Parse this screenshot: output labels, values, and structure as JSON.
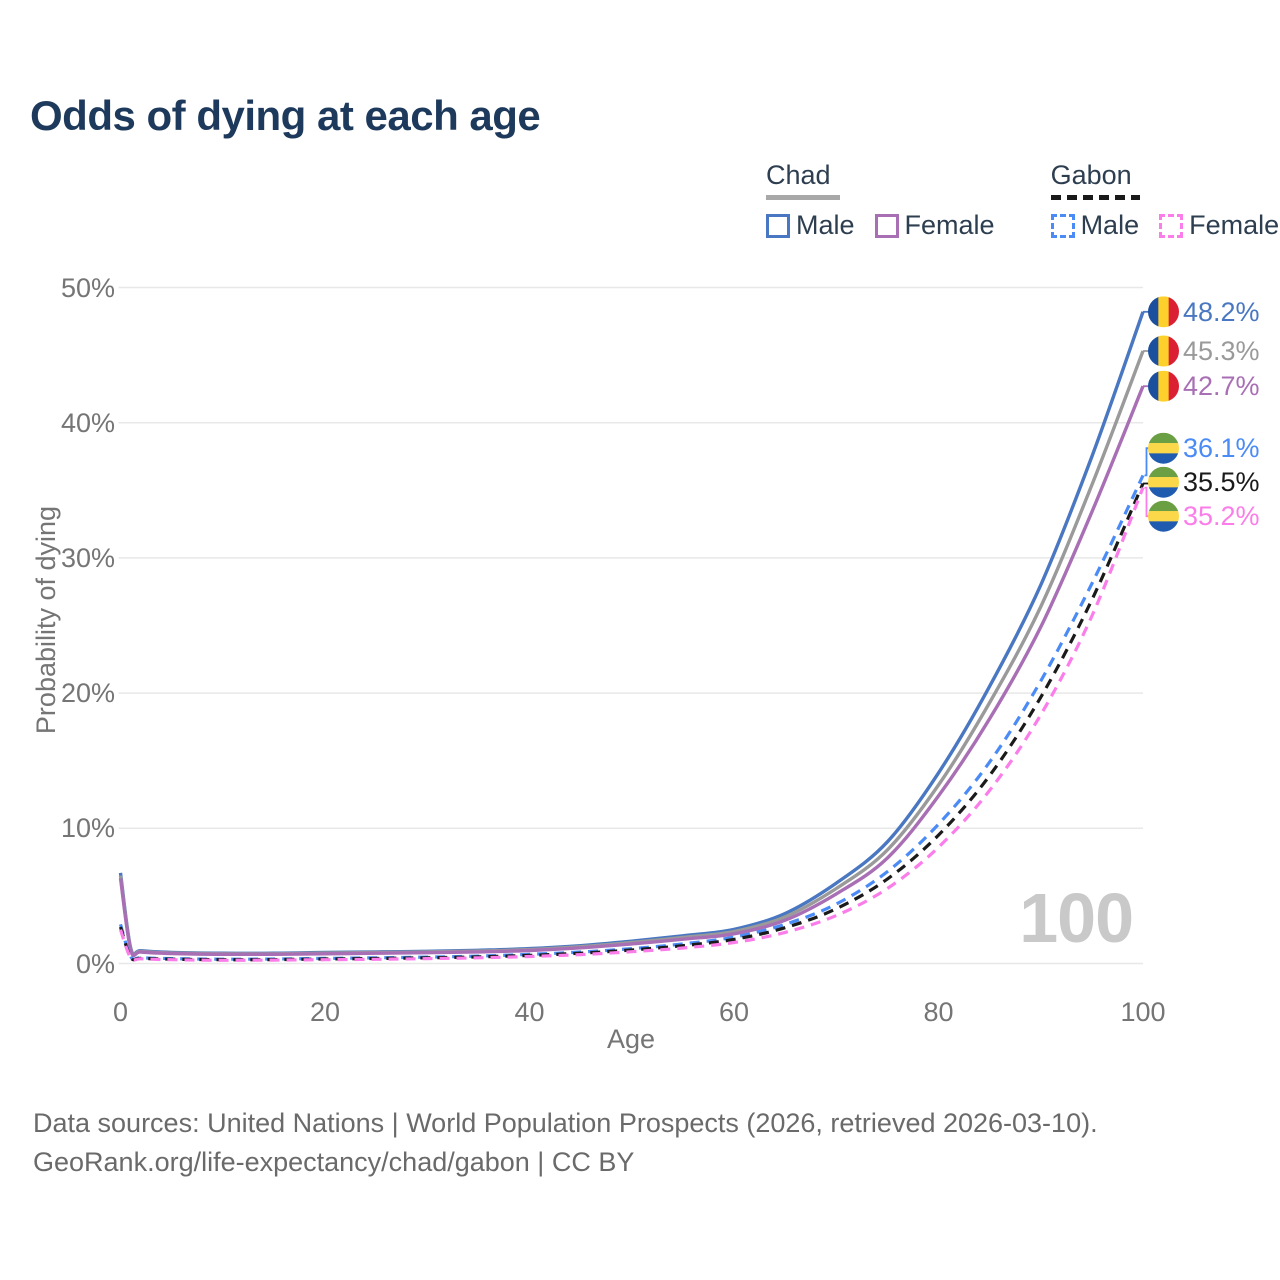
{
  "title": "Odds of dying at each age",
  "watermark": "100",
  "axes": {
    "x_label": "Age",
    "y_label": "Probability of dying"
  },
  "legend": {
    "groups": [
      {
        "name": "Chad",
        "line_style": "solid",
        "underline_color": "#a8a8a8",
        "items": [
          {
            "label": "Male",
            "color": "#4a77c1"
          },
          {
            "label": "Female",
            "color": "#a96fb4"
          }
        ]
      },
      {
        "name": "Gabon",
        "line_style": "dashed",
        "underline_color": "#1a1a1a",
        "items": [
          {
            "label": "Male",
            "color": "#4b8bf5"
          },
          {
            "label": "Female",
            "color": "#fb7de9"
          }
        ]
      }
    ]
  },
  "footer": {
    "line1": "Data sources: United Nations | World Population Prospects (2026, retrieved 2026-03-10).",
    "line2": "GeoRank.org/life-expectancy/chad/gabon | CC BY"
  },
  "flags": {
    "chad": {
      "orientation": "vertical",
      "colors": [
        "#1d4f9f",
        "#fdd02b",
        "#da2032"
      ]
    },
    "gabon": {
      "orientation": "horizontal",
      "colors": [
        "#6b9f43",
        "#fbd84a",
        "#1f5cb0"
      ]
    }
  },
  "chart_data": {
    "type": "line",
    "title": "Odds of dying at each age",
    "xlabel": "Age",
    "ylabel": "Probability of dying",
    "xlim": [
      0,
      100
    ],
    "ylim": [
      0,
      50
    ],
    "grid": "horizontal",
    "legend_position": "top-right",
    "x_ticks": [
      0,
      20,
      40,
      60,
      80,
      100
    ],
    "y_ticks": [
      {
        "value": 0,
        "label": "0%"
      },
      {
        "value": 10,
        "label": "10%"
      },
      {
        "value": 20,
        "label": "20%"
      },
      {
        "value": 30,
        "label": "30%"
      },
      {
        "value": 40,
        "label": "40%"
      },
      {
        "value": 50,
        "label": "50%"
      }
    ],
    "x": [
      0,
      1,
      2,
      5,
      10,
      15,
      20,
      25,
      30,
      35,
      40,
      45,
      50,
      55,
      60,
      65,
      70,
      75,
      80,
      85,
      90,
      95,
      100
    ],
    "series": [
      {
        "id": "chad-male",
        "name": "Chad Male",
        "country": "chad",
        "dash": "solid",
        "color": "#4a77c1",
        "end_label": "48.2%",
        "end_value": 48.2,
        "values": [
          6.7,
          1.15,
          0.95,
          0.82,
          0.76,
          0.76,
          0.82,
          0.86,
          0.9,
          0.98,
          1.1,
          1.32,
          1.65,
          2.05,
          2.52,
          3.7,
          5.95,
          9.0,
          14.1,
          20.5,
          28.0,
          37.5,
          48.2
        ]
      },
      {
        "id": "chad-both-sexes",
        "name": "Chad Both sexes",
        "country": "chad",
        "dash": "solid",
        "color": "#9a9a9a",
        "end_label": "45.3%",
        "end_value": 45.3,
        "values": [
          6.5,
          1.08,
          0.9,
          0.78,
          0.72,
          0.72,
          0.77,
          0.81,
          0.85,
          0.92,
          1.03,
          1.24,
          1.55,
          1.92,
          2.36,
          3.45,
          5.55,
          8.4,
          13.2,
          19.3,
          26.4,
          35.4,
          45.3
        ]
      },
      {
        "id": "chad-female",
        "name": "Chad Female",
        "country": "chad",
        "dash": "solid",
        "color": "#a96fb4",
        "end_label": "42.7%",
        "end_value": 42.7,
        "values": [
          6.3,
          1.02,
          0.85,
          0.74,
          0.68,
          0.68,
          0.72,
          0.76,
          0.8,
          0.86,
          0.96,
          1.16,
          1.45,
          1.8,
          2.2,
          3.2,
          5.15,
          7.8,
          12.4,
          18.1,
          24.9,
          33.4,
          42.7
        ]
      },
      {
        "id": "gabon-male",
        "name": "Gabon Male",
        "country": "gabon",
        "dash": "dashed",
        "color": "#4b8bf5",
        "end_label": "36.1%",
        "end_value": 36.1,
        "values": [
          2.9,
          0.5,
          0.42,
          0.36,
          0.32,
          0.33,
          0.38,
          0.42,
          0.47,
          0.55,
          0.68,
          0.85,
          1.1,
          1.45,
          1.95,
          2.9,
          4.4,
          6.8,
          10.3,
          14.9,
          20.9,
          28.1,
          36.1
        ]
      },
      {
        "id": "gabon-both-sexes",
        "name": "Gabon Both sexes",
        "country": "gabon",
        "dash": "dashed",
        "color": "#1a1a1a",
        "end_label": "35.5%",
        "end_value": 35.5,
        "values": [
          2.7,
          0.46,
          0.38,
          0.32,
          0.28,
          0.29,
          0.33,
          0.37,
          0.42,
          0.49,
          0.6,
          0.76,
          1.0,
          1.32,
          1.78,
          2.65,
          4.05,
          6.25,
          9.5,
          13.9,
          19.7,
          26.9,
          35.5
        ]
      },
      {
        "id": "gabon-female",
        "name": "Gabon Female",
        "country": "gabon",
        "dash": "dashed",
        "color": "#fb7de9",
        "end_label": "35.2%",
        "end_value": 35.2,
        "values": [
          2.5,
          0.42,
          0.35,
          0.28,
          0.24,
          0.25,
          0.28,
          0.31,
          0.36,
          0.42,
          0.52,
          0.66,
          0.87,
          1.15,
          1.55,
          2.3,
          3.55,
          5.55,
          8.6,
          12.8,
          18.4,
          25.7,
          35.2
        ]
      }
    ]
  }
}
